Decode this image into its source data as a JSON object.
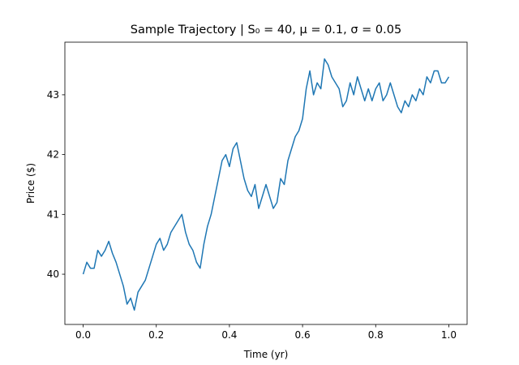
{
  "chart_data": {
    "type": "line",
    "title": "Sample Trajectory | S₀ = 40, μ = 0.1, σ = 0.05",
    "x_label": "Time (yr)",
    "y_label": "Price ($)",
    "x": [
      0,
      0.01,
      0.02,
      0.03,
      0.04,
      0.05,
      0.06,
      0.07,
      0.08,
      0.09,
      0.1,
      0.11,
      0.12,
      0.13,
      0.14,
      0.15,
      0.16,
      0.17,
      0.18,
      0.19,
      0.2,
      0.21,
      0.22,
      0.23,
      0.24,
      0.25,
      0.26,
      0.27,
      0.28,
      0.29,
      0.3,
      0.31,
      0.32,
      0.33,
      0.34,
      0.35,
      0.36,
      0.37,
      0.38,
      0.39,
      0.4,
      0.41,
      0.42,
      0.43,
      0.44,
      0.45,
      0.46,
      0.47,
      0.48,
      0.49,
      0.5,
      0.51,
      0.52,
      0.53,
      0.54,
      0.55,
      0.56,
      0.57,
      0.58,
      0.59,
      0.6,
      0.61,
      0.62,
      0.63,
      0.64,
      0.65,
      0.66,
      0.67,
      0.68,
      0.69,
      0.7,
      0.71,
      0.72,
      0.73,
      0.74,
      0.75,
      0.76,
      0.77,
      0.78,
      0.79,
      0.8,
      0.81,
      0.82,
      0.83,
      0.84,
      0.85,
      0.86,
      0.87,
      0.88,
      0.89,
      0.9,
      0.91,
      0.92,
      0.93,
      0.94,
      0.95,
      0.96,
      0.97,
      0.98,
      0.99,
      1
    ],
    "series": [
      {
        "color": "#1f77b4",
        "values": [
          40.0,
          40.2,
          40.1,
          40.1,
          40.4,
          40.3,
          40.4,
          40.55,
          40.35,
          40.2,
          40.0,
          39.8,
          39.5,
          39.6,
          39.4,
          39.7,
          39.8,
          39.9,
          40.1,
          40.3,
          40.5,
          40.6,
          40.4,
          40.5,
          40.7,
          40.8,
          40.9,
          41.0,
          40.7,
          40.5,
          40.4,
          40.2,
          40.1,
          40.5,
          40.8,
          41.0,
          41.3,
          41.6,
          41.9,
          42.0,
          41.8,
          42.1,
          42.2,
          41.9,
          41.6,
          41.4,
          41.3,
          41.5,
          41.1,
          41.3,
          41.5,
          41.3,
          41.1,
          41.2,
          41.6,
          41.5,
          41.9,
          42.1,
          42.3,
          42.4,
          42.6,
          43.1,
          43.4,
          43.0,
          43.2,
          43.1,
          43.6,
          43.5,
          43.3,
          43.2,
          43.1,
          42.8,
          42.9,
          43.2,
          43.0,
          43.3,
          43.1,
          42.9,
          43.1,
          42.9,
          43.1,
          43.2,
          42.9,
          43.0,
          43.2,
          43.0,
          42.8,
          42.7,
          42.9,
          42.8,
          43.0,
          42.9,
          43.1,
          43.0,
          43.3,
          43.2,
          43.4,
          43.4,
          43.2,
          43.2,
          43.3
        ]
      }
    ],
    "xlim": [
      -0.05,
      1.05
    ],
    "xticks": [
      {
        "value": 0,
        "label": "0.0"
      },
      0.2,
      0.4,
      0.6,
      0.8,
      {
        "value": 1,
        "label": "1.0"
      }
    ],
    "ylim": [
      39.16,
      43.88
    ],
    "yticks": [
      40,
      41,
      42,
      43
    ],
    "grid": false
  }
}
